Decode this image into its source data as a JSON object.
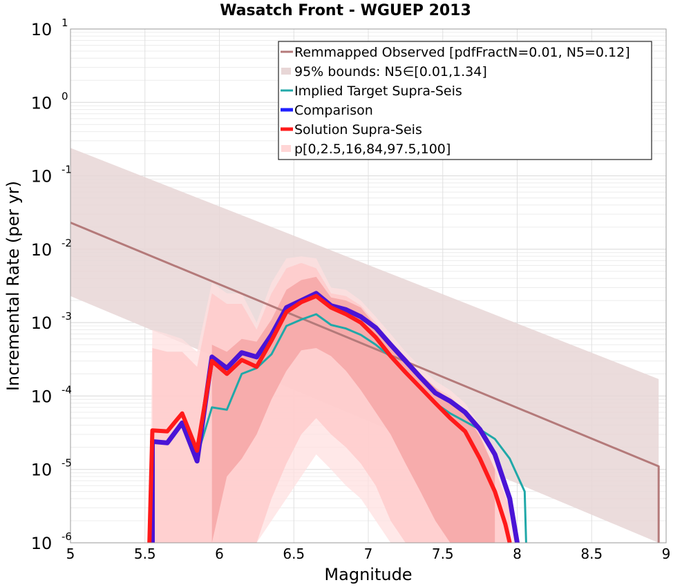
{
  "chart_data": {
    "type": "line",
    "title": "Wasatch Front - WGUEP 2013",
    "xlabel": "Magnitude",
    "ylabel": "Incremental Rate (per yr)",
    "xlim": [
      5,
      9
    ],
    "ylim": [
      1e-06,
      10
    ],
    "yscale": "log",
    "grid": true,
    "legend_position": "top-right",
    "x_ticks": [
      "5",
      "5.5",
      "6",
      "6.5",
      "7",
      "7.5",
      "8",
      "8.5",
      "9"
    ],
    "y_ticks": [
      {
        "base": "10",
        "exp": "-6"
      },
      {
        "base": "10",
        "exp": "-5"
      },
      {
        "base": "10",
        "exp": "-4"
      },
      {
        "base": "10",
        "exp": "-3"
      },
      {
        "base": "10",
        "exp": "-2"
      },
      {
        "base": "10",
        "exp": "-1"
      },
      {
        "base": "10",
        "exp": "0"
      },
      {
        "base": "10",
        "exp": "1"
      }
    ],
    "legend": [
      {
        "label": "Remmapped Observed [pdfFractN=0.01, N5=0.12]",
        "color": "#b47a7a",
        "kind": "line"
      },
      {
        "label": "95% bounds: N5∈[0.01,1.34]",
        "color": "#e8d6d6",
        "kind": "band"
      },
      {
        "label": "Implied Target Supra-Seis",
        "color": "#20a8a8",
        "kind": "line"
      },
      {
        "label": "Comparison",
        "color": "#2020ff",
        "kind": "thick-line"
      },
      {
        "label": "Solution Supra-Seis",
        "color": "#ff1a1a",
        "kind": "thick-line"
      },
      {
        "label": "p[0,2.5,16,84,97.5,100]",
        "color": "#ffd6d6",
        "kind": "band"
      }
    ],
    "series": [
      {
        "name": "Remmapped Observed [pdfFractN=0.01, N5=0.12]",
        "color": "#b47a7a",
        "x": [
          5.0,
          8.95,
          8.95
        ],
        "y": [
          0.023,
          1.1e-05,
          1e-06
        ]
      },
      {
        "name": "Implied Target Supra-Seis",
        "color": "#20a8a8",
        "x": [
          5.85,
          5.95,
          6.05,
          6.15,
          6.25,
          6.35,
          6.45,
          6.55,
          6.65,
          6.75,
          6.85,
          6.95,
          7.05,
          7.15,
          7.25,
          7.35,
          7.45,
          7.55,
          7.65,
          7.75,
          7.85,
          7.95,
          8.05,
          8.06
        ],
        "y": [
          1.5e-05,
          7e-05,
          6.5e-05,
          0.0002,
          0.00024,
          0.00037,
          0.0009,
          0.0011,
          0.0013,
          0.00093,
          0.00083,
          0.00068,
          0.0005,
          0.00034,
          0.00022,
          0.00013,
          8e-05,
          5.8e-05,
          4.5e-05,
          3.5e-05,
          2.6e-05,
          1.4e-05,
          5e-06,
          1e-06
        ]
      },
      {
        "name": "Comparison",
        "color": "#4a14d6",
        "x": [
          5.55,
          5.55,
          5.65,
          5.75,
          5.85,
          5.95,
          6.05,
          6.15,
          6.25,
          6.35,
          6.45,
          6.55,
          6.65,
          6.75,
          6.85,
          6.95,
          7.05,
          7.15,
          7.25,
          7.35,
          7.45,
          7.55,
          7.65,
          7.75,
          7.85,
          7.95,
          8.0
        ],
        "y": [
          1e-06,
          2.4e-05,
          2.3e-05,
          4.3e-05,
          1.3e-05,
          0.00034,
          0.00024,
          0.00039,
          0.00034,
          0.00068,
          0.0016,
          0.002,
          0.0025,
          0.0017,
          0.0015,
          0.0012,
          0.00085,
          0.0005,
          0.0003,
          0.00018,
          0.00011,
          8.5e-05,
          6e-05,
          3.5e-05,
          1.6e-05,
          4e-06,
          1e-06
        ]
      },
      {
        "name": "Solution Supra-Seis",
        "color": "#ff1a1a",
        "x": [
          5.53,
          5.55,
          5.65,
          5.75,
          5.85,
          5.95,
          6.05,
          6.15,
          6.25,
          6.35,
          6.45,
          6.55,
          6.65,
          6.75,
          6.85,
          6.95,
          7.05,
          7.15,
          7.25,
          7.35,
          7.45,
          7.55,
          7.65,
          7.75,
          7.85,
          7.92,
          7.95
        ],
        "y": [
          1e-06,
          3.4e-05,
          3.3e-05,
          5.8e-05,
          1.8e-05,
          0.0003,
          0.0002,
          0.00031,
          0.00025,
          0.00057,
          0.0014,
          0.0019,
          0.0023,
          0.0016,
          0.0013,
          0.001,
          0.00063,
          0.00035,
          0.00021,
          0.00013,
          8e-05,
          5e-05,
          3.3e-05,
          1.4e-05,
          5e-06,
          1.8e-06,
          1e-06
        ]
      }
    ],
    "bands": [
      {
        "name": "95% bounds: N5∈[0.01,1.34]",
        "color": "#e8d6d6",
        "x": [
          5.0,
          8.95
        ],
        "lower": [
          0.0023,
          1e-06
        ],
        "upper": [
          0.24,
          0.00017
        ]
      },
      {
        "name": "p 0-100",
        "color": "#ffe0e0",
        "x": [
          5.53,
          5.55,
          5.65,
          5.75,
          5.85,
          5.95,
          6.05,
          6.15,
          6.25,
          6.35,
          6.45,
          6.55,
          6.65,
          6.75,
          6.85,
          6.95,
          7.05,
          7.15,
          7.25,
          7.35,
          7.45,
          7.55,
          7.65,
          7.75,
          7.85,
          7.95,
          8.0
        ],
        "lower": [
          1e-06,
          1e-06,
          1e-06,
          1e-06,
          1e-06,
          1e-06,
          1e-06,
          1e-06,
          1e-06,
          2e-06,
          4e-06,
          8e-06,
          1.6e-05,
          1e-05,
          6e-06,
          4e-06,
          2e-06,
          1e-06,
          1e-06,
          1e-06,
          1e-06,
          1e-06,
          1e-06,
          1e-06,
          1e-06,
          1e-06,
          1e-06
        ],
        "upper": [
          1e-06,
          0.0008,
          0.0007,
          0.0006,
          0.0004,
          0.0035,
          0.0025,
          0.0025,
          0.001,
          0.0035,
          0.0075,
          0.008,
          0.0075,
          0.003,
          0.0028,
          0.002,
          0.0012,
          0.0007,
          0.0004,
          0.00025,
          0.00016,
          0.00012,
          8e-05,
          4e-05,
          1.6e-05,
          4e-06,
          1e-06
        ]
      },
      {
        "name": "p 2.5-97.5",
        "color": "#ffc8c8",
        "x": [
          5.55,
          5.65,
          5.75,
          5.85,
          5.95,
          6.05,
          6.15,
          6.25,
          6.35,
          6.45,
          6.55,
          6.65,
          6.75,
          6.85,
          6.95,
          7.05,
          7.15,
          7.25,
          7.35,
          7.45,
          7.55,
          7.65,
          7.75,
          7.85,
          7.95
        ],
        "lower": [
          1e-06,
          1e-06,
          1e-06,
          1e-06,
          1e-06,
          1e-06,
          1e-06,
          1e-06,
          4e-06,
          1.2e-05,
          3e-05,
          5e-05,
          3e-05,
          2e-05,
          1.2e-05,
          6e-06,
          2e-06,
          1e-06,
          1e-06,
          1e-06,
          1e-06,
          1e-06,
          1e-06,
          1e-06,
          1e-06
        ],
        "upper": [
          0.00045,
          0.0004,
          0.0004,
          0.00025,
          0.0025,
          0.0018,
          0.0018,
          0.0008,
          0.0025,
          0.0055,
          0.0065,
          0.0055,
          0.0025,
          0.0023,
          0.0017,
          0.001,
          0.00055,
          0.00032,
          0.0002,
          0.00013,
          0.0001,
          6e-05,
          3e-05,
          1e-05,
          3e-06
        ]
      },
      {
        "name": "p 16-84",
        "color": "#f4a0a0",
        "x": [
          5.95,
          6.05,
          6.15,
          6.25,
          6.35,
          6.45,
          6.55,
          6.65,
          6.75,
          6.85,
          6.95,
          7.05,
          7.15,
          7.25,
          7.35,
          7.45,
          7.55,
          7.65,
          7.75,
          7.85
        ],
        "lower": [
          1e-06,
          8e-06,
          1.4e-05,
          3e-05,
          9e-05,
          0.00022,
          0.00042,
          0.00045,
          0.00035,
          0.00022,
          0.00012,
          6e-05,
          3e-05,
          1.2e-05,
          5e-06,
          2e-06,
          1e-06,
          1e-06,
          1e-06,
          1e-06
        ],
        "upper": [
          0.0005,
          0.0004,
          0.0006,
          0.00055,
          0.0011,
          0.0028,
          0.0038,
          0.0042,
          0.0022,
          0.002,
          0.0016,
          0.0009,
          0.00052,
          0.00034,
          0.0002,
          0.00013,
          8.5e-05,
          6e-05,
          2.8e-05,
          1e-05
        ]
      }
    ]
  }
}
